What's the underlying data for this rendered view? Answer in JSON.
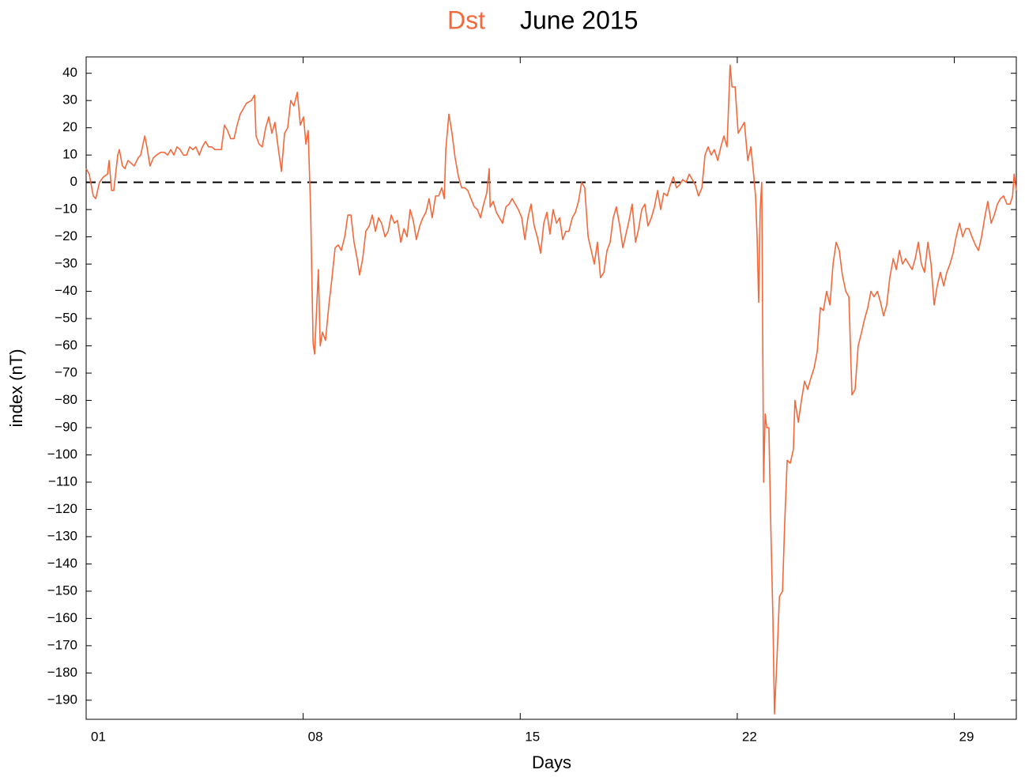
{
  "chart_data": {
    "type": "line",
    "title": "June 2015",
    "x_label": "Days",
    "y_label": "index (nT)",
    "xlim": [
      1,
      31
    ],
    "ylim": [
      -197,
      46
    ],
    "xticks": [
      {
        "value": 1,
        "label": "01"
      },
      {
        "value": 8,
        "label": "08"
      },
      {
        "value": 15,
        "label": "15"
      },
      {
        "value": 22,
        "label": "22"
      },
      {
        "value": 29,
        "label": "29"
      }
    ],
    "yticks": [
      {
        "value": -190,
        "label": "−190"
      },
      {
        "value": -180,
        "label": "−180"
      },
      {
        "value": -170,
        "label": "−170"
      },
      {
        "value": -160,
        "label": "−160"
      },
      {
        "value": -150,
        "label": "−150"
      },
      {
        "value": -140,
        "label": "−140"
      },
      {
        "value": -130,
        "label": "−130"
      },
      {
        "value": -120,
        "label": "−120"
      },
      {
        "value": -110,
        "label": "−110"
      },
      {
        "value": -100,
        "label": "−100"
      },
      {
        "value": -90,
        "label": "−90"
      },
      {
        "value": -80,
        "label": "−80"
      },
      {
        "value": -70,
        "label": "−70"
      },
      {
        "value": -60,
        "label": "−60"
      },
      {
        "value": -50,
        "label": "−50"
      },
      {
        "value": -40,
        "label": "−40"
      },
      {
        "value": -30,
        "label": "−30"
      },
      {
        "value": -20,
        "label": "−20"
      },
      {
        "value": -10,
        "label": "−10"
      },
      0,
      10,
      20,
      30,
      40
    ],
    "hline": 0,
    "x": [
      1.0,
      1.1,
      1.23,
      1.31,
      1.43,
      1.56,
      1.69,
      1.74,
      1.82,
      1.89,
      2.02,
      2.07,
      2.17,
      2.25,
      2.35,
      2.45,
      2.55,
      2.68,
      2.76,
      2.89,
      2.96,
      3.06,
      3.17,
      3.27,
      3.4,
      3.52,
      3.63,
      3.73,
      3.83,
      3.93,
      4.03,
      4.14,
      4.24,
      4.34,
      4.44,
      4.54,
      4.65,
      4.75,
      4.85,
      4.95,
      5.05,
      5.15,
      5.26,
      5.36,
      5.46,
      5.56,
      5.66,
      5.77,
      5.87,
      5.97,
      6.07,
      6.17,
      6.33,
      6.43,
      6.48,
      6.58,
      6.68,
      6.79,
      6.89,
      6.99,
      7.09,
      7.19,
      7.3,
      7.4,
      7.5,
      7.6,
      7.7,
      7.81,
      7.91,
      8.01,
      8.09,
      8.16,
      8.24,
      8.32,
      8.37,
      8.42,
      8.49,
      8.55,
      8.62,
      8.72,
      8.83,
      8.93,
      9.03,
      9.13,
      9.23,
      9.34,
      9.44,
      9.54,
      9.64,
      9.74,
      9.82,
      9.92,
      10.02,
      10.13,
      10.23,
      10.33,
      10.43,
      10.53,
      10.64,
      10.74,
      10.84,
      10.94,
      11.04,
      11.15,
      11.25,
      11.35,
      11.45,
      11.55,
      11.65,
      11.76,
      11.86,
      11.96,
      12.06,
      12.16,
      12.27,
      12.37,
      12.47,
      12.55,
      12.6,
      12.7,
      12.8,
      12.9,
      13.01,
      13.11,
      13.21,
      13.31,
      13.41,
      13.52,
      13.62,
      13.72,
      13.82,
      13.92,
      14.0,
      14.03,
      14.13,
      14.23,
      14.33,
      14.43,
      14.54,
      14.64,
      14.74,
      14.84,
      14.94,
      15.05,
      15.15,
      15.25,
      15.35,
      15.45,
      15.55,
      15.66,
      15.76,
      15.86,
      15.96,
      16.06,
      16.17,
      16.27,
      16.37,
      16.47,
      16.57,
      16.68,
      16.78,
      16.88,
      16.98,
      17.08,
      17.19,
      17.29,
      17.39,
      17.49,
      17.59,
      17.7,
      17.8,
      17.9,
      18.0,
      18.1,
      18.21,
      18.31,
      18.41,
      18.51,
      18.61,
      18.72,
      18.82,
      18.92,
      19.02,
      19.12,
      19.23,
      19.33,
      19.43,
      19.53,
      19.63,
      19.74,
      19.84,
      19.94,
      20.04,
      20.14,
      20.24,
      20.35,
      20.45,
      20.55,
      20.65,
      20.75,
      20.86,
      20.96,
      21.06,
      21.16,
      21.26,
      21.37,
      21.47,
      21.57,
      21.67,
      21.77,
      21.83,
      21.93,
      22.03,
      22.13,
      22.23,
      22.34,
      22.44,
      22.51,
      22.59,
      22.64,
      22.69,
      22.74,
      22.79,
      22.85,
      22.9,
      22.95,
      23.02,
      23.07,
      23.15,
      23.2,
      23.28,
      23.36,
      23.46,
      23.53,
      23.61,
      23.71,
      23.81,
      23.86,
      23.97,
      24.07,
      24.17,
      24.27,
      24.37,
      24.48,
      24.58,
      24.68,
      24.78,
      24.88,
      24.99,
      25.09,
      25.19,
      25.29,
      25.39,
      25.5,
      25.6,
      25.7,
      25.8,
      25.9,
      26.01,
      26.11,
      26.21,
      26.31,
      26.41,
      26.52,
      26.62,
      26.72,
      26.82,
      26.92,
      27.03,
      27.13,
      27.23,
      27.33,
      27.43,
      27.53,
      27.64,
      27.74,
      27.84,
      27.94,
      28.04,
      28.15,
      28.25,
      28.35,
      28.45,
      28.55,
      28.66,
      28.76,
      28.86,
      28.96,
      29.06,
      29.17,
      29.27,
      29.37,
      29.47,
      29.57,
      29.68,
      29.78,
      29.88,
      29.98,
      30.08,
      30.19,
      30.29,
      30.39,
      30.49,
      30.59,
      30.7,
      30.8,
      30.88,
      30.93,
      31.0
    ],
    "series": [
      {
        "name": "Dst",
        "color": "#f4693b",
        "values": [
          5,
          3,
          -5,
          -6,
          0,
          2,
          3,
          8,
          -3,
          -3,
          10,
          12,
          6,
          5,
          8,
          7,
          6,
          9,
          10,
          17,
          13,
          6,
          9,
          10,
          11,
          11,
          10,
          12,
          10,
          13,
          12,
          10,
          10,
          13,
          12,
          13,
          10,
          13,
          15,
          13,
          13,
          12,
          12,
          12,
          21,
          19,
          16,
          16,
          21,
          25,
          27,
          29,
          30,
          32,
          17,
          14,
          13,
          20,
          24,
          18,
          22,
          13,
          4,
          18,
          20,
          30,
          28,
          33,
          21,
          24,
          14,
          19,
          -10,
          -59,
          -63,
          -50,
          -32,
          -60,
          -55,
          -58,
          -45,
          -35,
          -24,
          -23,
          -25,
          -20,
          -12,
          -12,
          -22,
          -28,
          -34,
          -28,
          -18,
          -16,
          -12,
          -18,
          -13,
          -15,
          -20,
          -18,
          -12,
          -15,
          -14,
          -22,
          -17,
          -20,
          -10,
          -14,
          -21,
          -16,
          -13,
          -11,
          -6,
          -13,
          -5,
          -5,
          -2,
          -6,
          12,
          25,
          18,
          9,
          2,
          -2,
          -2,
          -3,
          -6,
          -9,
          -10,
          -13,
          -8,
          -4,
          5,
          -9,
          -7,
          -11,
          -13,
          -15,
          -9,
          -8,
          -6,
          -8,
          -10,
          -13,
          -21,
          -13,
          -8,
          -16,
          -20,
          -26,
          -15,
          -11,
          -19,
          -10,
          -15,
          -13,
          -21,
          -18,
          -18,
          -13,
          -11,
          -7,
          0,
          -2,
          -20,
          -25,
          -30,
          -22,
          -35,
          -33,
          -25,
          -22,
          -13,
          -9,
          -16,
          -24,
          -19,
          -14,
          -8,
          -22,
          -17,
          -10,
          -8,
          -16,
          -13,
          -9,
          -3,
          -10,
          -4,
          -5,
          -1,
          2,
          -2,
          -1,
          1,
          0,
          3,
          1,
          -1,
          -5,
          -2,
          10,
          13,
          10,
          12,
          8,
          13,
          17,
          13,
          43,
          35,
          35,
          18,
          20,
          22,
          8,
          13,
          5,
          -5,
          -20,
          -44,
          -10,
          0,
          -110,
          -85,
          -90,
          -90,
          -120,
          -160,
          -195,
          -175,
          -152,
          -150,
          -125,
          -102,
          -103,
          -98,
          -80,
          -88,
          -80,
          -73,
          -76,
          -72,
          -68,
          -62,
          -46,
          -47,
          -40,
          -45,
          -30,
          -22,
          -25,
          -34,
          -40,
          -42,
          -78,
          -76,
          -60,
          -55,
          -50,
          -46,
          -40,
          -42,
          -40,
          -44,
          -49,
          -45,
          -35,
          -28,
          -32,
          -25,
          -30,
          -28,
          -30,
          -32,
          -28,
          -22,
          -30,
          -33,
          -22,
          -30,
          -45,
          -38,
          -33,
          -38,
          -33,
          -30,
          -26,
          -20,
          -15,
          -20,
          -17,
          -17,
          -20,
          -23,
          -25,
          -20,
          -13,
          -7,
          -15,
          -12,
          -8,
          -6,
          -5,
          -8,
          -8,
          -5,
          3,
          -3
        ]
      }
    ]
  }
}
